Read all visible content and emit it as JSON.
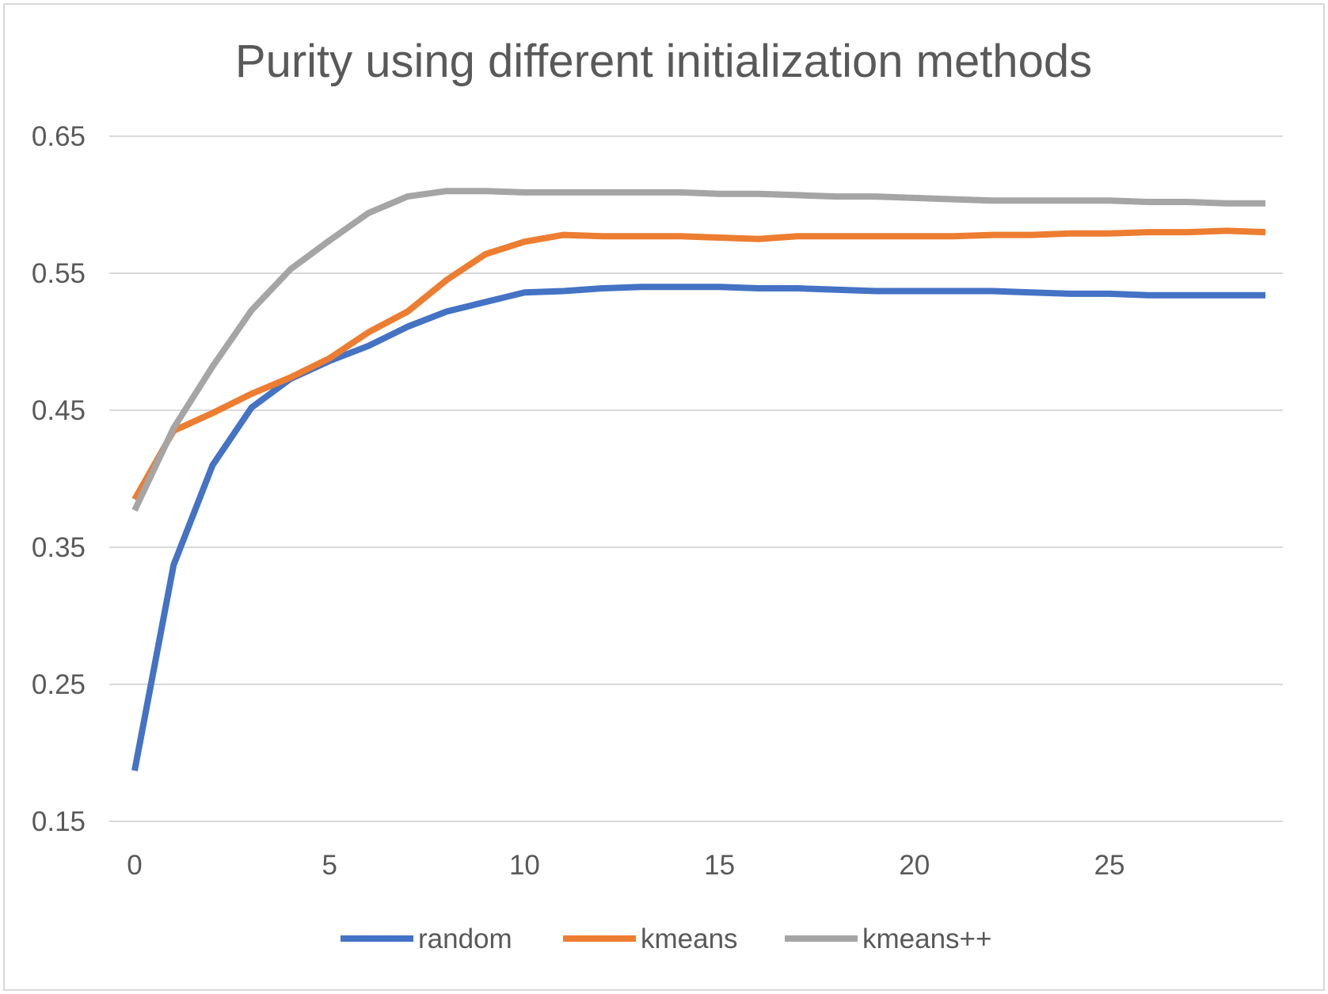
{
  "chart_data": {
    "type": "line",
    "title": "Purity using different initialization methods",
    "xlabel": "",
    "ylabel": "",
    "x": [
      0,
      1,
      2,
      3,
      4,
      5,
      6,
      7,
      8,
      9,
      10,
      11,
      12,
      13,
      14,
      15,
      16,
      17,
      18,
      19,
      20,
      21,
      22,
      23,
      24,
      25,
      26,
      27,
      28,
      29
    ],
    "xticks": [
      0,
      5,
      10,
      15,
      20,
      25
    ],
    "xlim": [
      0,
      29
    ],
    "yticks": [
      0.15,
      0.25,
      0.35,
      0.45,
      0.55,
      0.65
    ],
    "ytick_labels": [
      "0.15",
      "0.25",
      "0.35",
      "0.45",
      "0.55",
      "0.65"
    ],
    "ylim": [
      0.15,
      0.65
    ],
    "grid": "horizontal",
    "legend_position": "bottom",
    "series": [
      {
        "name": "random",
        "color": "#4472c4",
        "values": [
          0.187,
          0.337,
          0.41,
          0.452,
          0.473,
          0.486,
          0.497,
          0.511,
          0.522,
          0.529,
          0.536,
          0.537,
          0.539,
          0.54,
          0.54,
          0.54,
          0.539,
          0.539,
          0.538,
          0.537,
          0.537,
          0.537,
          0.537,
          0.536,
          0.535,
          0.535,
          0.534,
          0.534,
          0.534,
          0.534
        ]
      },
      {
        "name": "kmeans",
        "color": "#ed7d31",
        "values": [
          0.385,
          0.435,
          0.448,
          0.462,
          0.474,
          0.488,
          0.507,
          0.522,
          0.545,
          0.564,
          0.573,
          0.578,
          0.577,
          0.577,
          0.577,
          0.576,
          0.575,
          0.577,
          0.577,
          0.577,
          0.577,
          0.577,
          0.578,
          0.578,
          0.579,
          0.579,
          0.58,
          0.58,
          0.581,
          0.58
        ]
      },
      {
        "name": "kmeans++",
        "color": "#a5a5a5",
        "values": [
          0.377,
          0.437,
          0.482,
          0.523,
          0.553,
          0.574,
          0.594,
          0.606,
          0.61,
          0.61,
          0.609,
          0.609,
          0.609,
          0.609,
          0.609,
          0.608,
          0.608,
          0.607,
          0.606,
          0.606,
          0.605,
          0.604,
          0.603,
          0.603,
          0.603,
          0.603,
          0.602,
          0.602,
          0.601,
          0.601
        ]
      }
    ]
  }
}
